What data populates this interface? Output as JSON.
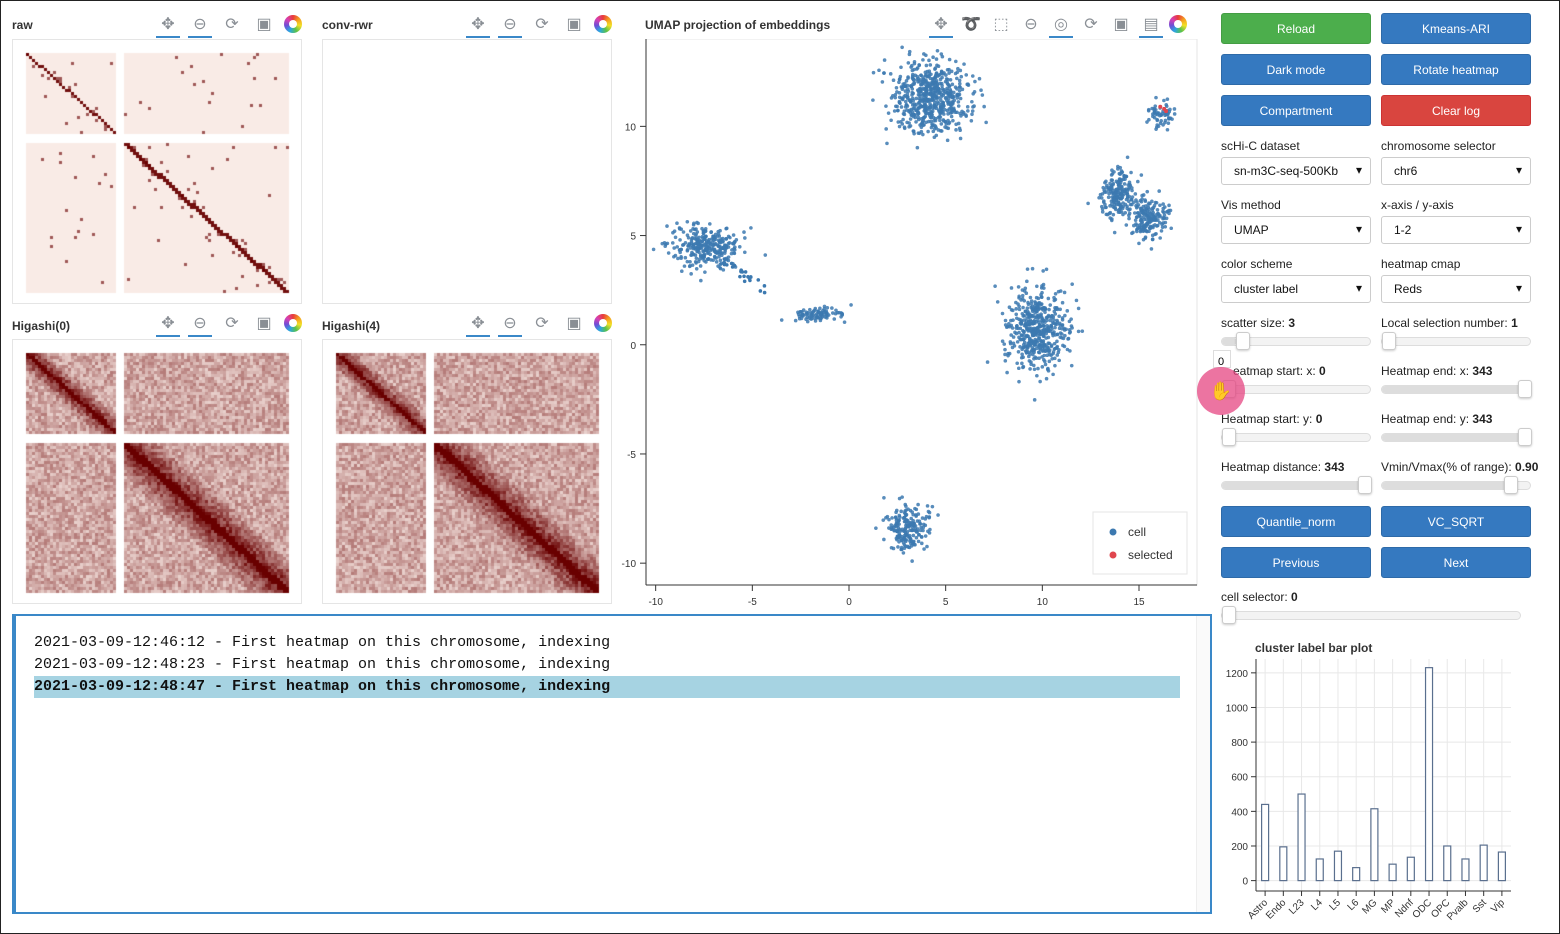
{
  "panels": {
    "raw": {
      "title": "raw"
    },
    "conv": {
      "title": "conv-rwr"
    },
    "h0": {
      "title": "Higashi(0)"
    },
    "h4": {
      "title": "Higashi(4)"
    }
  },
  "umap": {
    "title": "UMAP projection of embeddings",
    "xticks": [
      "-10",
      "-5",
      "0",
      "5",
      "10",
      "15"
    ],
    "yticks": [
      "10",
      "5",
      "0",
      "-5",
      "-10"
    ],
    "xlim": [
      -10.5,
      18
    ],
    "ylim": [
      -11,
      14
    ],
    "legend": [
      {
        "label": "cell",
        "color": "#3c79b0"
      },
      {
        "label": "selected",
        "color": "#e0464e"
      }
    ],
    "clusters": [
      {
        "cx": 4.2,
        "cy": 11.3,
        "sx": 1.0,
        "sy": 0.8,
        "n": 600
      },
      {
        "cx": 16.2,
        "cy": 10.5,
        "sx": 0.35,
        "sy": 0.3,
        "n": 60
      },
      {
        "cx": 13.9,
        "cy": 6.9,
        "sx": 0.45,
        "sy": 0.6,
        "n": 200
      },
      {
        "cx": 15.5,
        "cy": 5.8,
        "sx": 0.45,
        "sy": 0.5,
        "n": 180
      },
      {
        "cx": -7.5,
        "cy": 4.5,
        "sx": 0.9,
        "sy": 0.45,
        "n": 300
      },
      {
        "cx": -1.5,
        "cy": 1.4,
        "sx": 0.7,
        "sy": 0.15,
        "n": 90
      },
      {
        "cx": 9.8,
        "cy": 0.7,
        "sx": 0.8,
        "sy": 0.9,
        "n": 500
      },
      {
        "cx": 3.0,
        "cy": -8.4,
        "sx": 0.6,
        "sy": 0.5,
        "n": 200
      }
    ],
    "selected_points": [
      [
        16.3,
        10.8
      ],
      [
        16.1,
        10.9
      ],
      [
        16.4,
        10.7
      ]
    ]
  },
  "toolbar_icons": [
    "pan-icon",
    "lasso-icon",
    "box-select-icon",
    "wheel-zoom-icon",
    "tap-icon",
    "reset-icon",
    "save-icon",
    "hover-icon",
    "bokeh-logo"
  ],
  "buttons": {
    "reload": "Reload",
    "kmeans": "Kmeans-ARI",
    "dark": "Dark mode",
    "rotate": "Rotate heatmap",
    "compartment": "Compartment",
    "clear": "Clear log",
    "quantile": "Quantile_norm",
    "vcsqrt": "VC_SQRT",
    "previous": "Previous",
    "next": "Next"
  },
  "selects": {
    "dataset": {
      "label": "scHi-C dataset",
      "value": "sn-m3C-seq-500Kb"
    },
    "chrom": {
      "label": "chromosome selector",
      "value": "chr6"
    },
    "vis": {
      "label": "Vis method",
      "value": "UMAP"
    },
    "axis": {
      "label": "x-axis / y-axis",
      "value": "1-2"
    },
    "color": {
      "label": "color scheme",
      "value": "cluster label"
    },
    "cmap": {
      "label": "heatmap cmap",
      "value": "Reds"
    }
  },
  "sliders": {
    "scatter": {
      "label": "scatter size: ",
      "value": "3",
      "frac": 0.1
    },
    "local": {
      "label": "Local selection number: ",
      "value": "1",
      "frac": 0
    },
    "hsx": {
      "label": "eatmap start: x: ",
      "value": "0",
      "frac": 0
    },
    "hex": {
      "label": "Heatmap end: x: ",
      "value": "343",
      "frac": 1
    },
    "hsy": {
      "label": "Heatmap start: y: ",
      "value": "0",
      "frac": 0
    },
    "hey": {
      "label": "Heatmap end: y: ",
      "value": "343",
      "frac": 1
    },
    "dist": {
      "label": "Heatmap distance: ",
      "value": "343",
      "frac": 1
    },
    "vmin": {
      "label": "Vmin/Vmax(% of range): ",
      "value": "0.90",
      "frac": 0.9
    },
    "cell": {
      "label": "cell selector: ",
      "value": "0",
      "frac": 0
    }
  },
  "tooltip_value": "0",
  "log": [
    "2021-03-09-12:46:12 - First heatmap on this chromosome, indexing",
    "2021-03-09-12:48:23 - First heatmap on this chromosome, indexing",
    "2021-03-09-12:48:47 - First heatmap on this chromosome, indexing"
  ],
  "barplot": {
    "title": "cluster label bar plot",
    "type": "bar",
    "categories": [
      "Astro",
      "Endo",
      "L23",
      "L4",
      "L5",
      "L6",
      "MG",
      "MP",
      "Ndnf",
      "ODC",
      "OPC",
      "Pvalb",
      "Sst",
      "Vip"
    ],
    "values": [
      440,
      195,
      500,
      125,
      170,
      75,
      415,
      95,
      135,
      1230,
      200,
      125,
      205,
      165
    ],
    "yticks": [
      "0",
      "200",
      "400",
      "600",
      "800",
      "1000",
      "1200"
    ],
    "ylim": [
      -60,
      1280
    ]
  }
}
